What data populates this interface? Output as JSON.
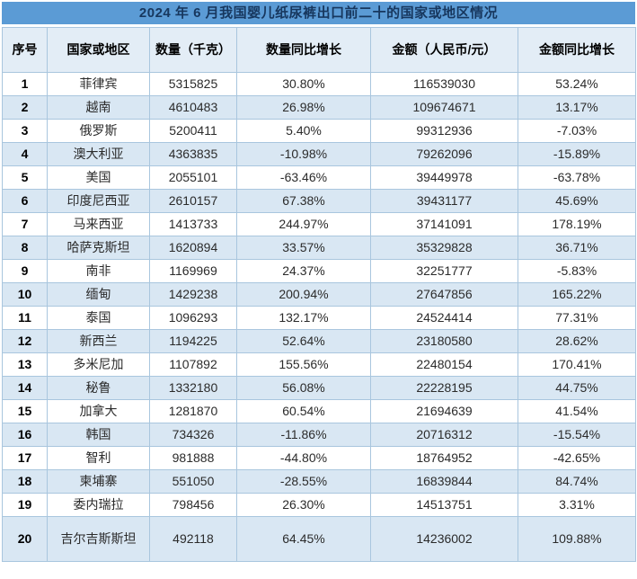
{
  "page": {
    "title_bar": "2024 年 6 月我国婴儿纸尿裤出口前二十的国家或地区情况"
  },
  "colors": {
    "title_bar_bg": "#5B9BD5",
    "title_text": "#17375E",
    "header_bg": "#E3EDF6",
    "stripe_bg": "#D9E7F3",
    "border": "#A9C6DE",
    "text": "#2B2B2B"
  },
  "chart_data": {
    "type": "table",
    "title": "2024 年 6 月我国婴儿纸尿裤出口前二十的国家或地区情况",
    "columns": [
      "序号",
      "国家或地区",
      "数量（千克）",
      "数量同比增长",
      "金额（人民币/元）",
      "金额同比增长"
    ],
    "rows": [
      [
        "1",
        "菲律宾",
        "5315825",
        "30.80%",
        "116539030",
        "53.24%"
      ],
      [
        "2",
        "越南",
        "4610483",
        "26.98%",
        "109674671",
        "13.17%"
      ],
      [
        "3",
        "俄罗斯",
        "5200411",
        "5.40%",
        "99312936",
        "-7.03%"
      ],
      [
        "4",
        "澳大利亚",
        "4363835",
        "-10.98%",
        "79262096",
        "-15.89%"
      ],
      [
        "5",
        "美国",
        "2055101",
        "-63.46%",
        "39449978",
        "-63.78%"
      ],
      [
        "6",
        "印度尼西亚",
        "2610157",
        "67.38%",
        "39431177",
        "45.69%"
      ],
      [
        "7",
        "马来西亚",
        "1413733",
        "244.97%",
        "37141091",
        "178.19%"
      ],
      [
        "8",
        "哈萨克斯坦",
        "1620894",
        "33.57%",
        "35329828",
        "36.71%"
      ],
      [
        "9",
        "南非",
        "1169969",
        "24.37%",
        "32251777",
        "-5.83%"
      ],
      [
        "10",
        "缅甸",
        "1429238",
        "200.94%",
        "27647856",
        "165.22%"
      ],
      [
        "11",
        "泰国",
        "1096293",
        "132.17%",
        "24524414",
        "77.31%"
      ],
      [
        "12",
        "新西兰",
        "1194225",
        "52.64%",
        "23180580",
        "28.62%"
      ],
      [
        "13",
        "多米尼加",
        "1107892",
        "155.56%",
        "22480154",
        "170.41%"
      ],
      [
        "14",
        "秘鲁",
        "1332180",
        "56.08%",
        "22228195",
        "44.75%"
      ],
      [
        "15",
        "加拿大",
        "1281870",
        "60.54%",
        "21694639",
        "41.54%"
      ],
      [
        "16",
        "韩国",
        "734326",
        "-11.86%",
        "20716312",
        "-15.54%"
      ],
      [
        "17",
        "智利",
        "981888",
        "-44.80%",
        "18764952",
        "-42.65%"
      ],
      [
        "18",
        "柬埔寨",
        "551050",
        "-28.55%",
        "16839844",
        "84.74%"
      ],
      [
        "19",
        "委内瑞拉",
        "798456",
        "26.30%",
        "14513751",
        "3.31%"
      ],
      [
        "20",
        "吉尔吉斯斯坦",
        "492118",
        "64.45%",
        "14236002",
        "109.88%"
      ]
    ]
  }
}
